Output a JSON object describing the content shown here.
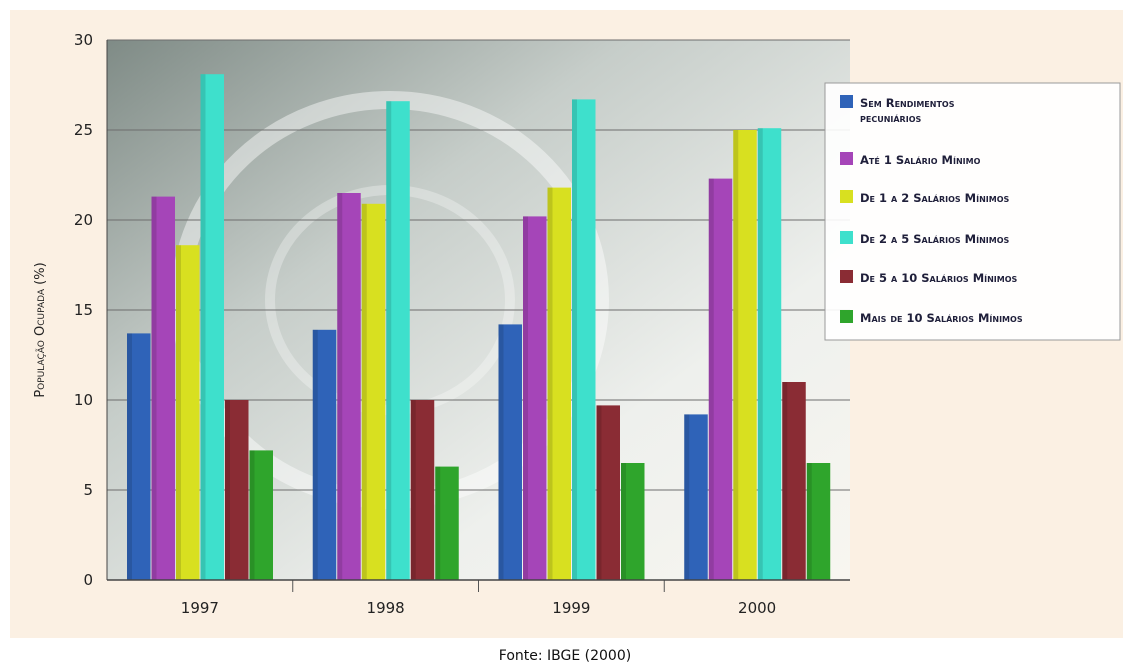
{
  "chart_data": {
    "type": "bar",
    "categories": [
      "1997",
      "1998",
      "1999",
      "2000"
    ],
    "ylabel": "População Ocupada (%)",
    "xlabel": "",
    "ylim": [
      0,
      30
    ],
    "yticks": [
      0,
      5,
      10,
      15,
      20,
      25,
      30
    ],
    "grid": true,
    "legend_position": "right",
    "series": [
      {
        "name": "Sem Rendimentos pecuniários",
        "color": "#2f63b8",
        "values": [
          13.7,
          13.9,
          14.2,
          9.2
        ]
      },
      {
        "name": "Até 1 Salário Mínimo",
        "color": "#a545b8",
        "values": [
          21.3,
          21.5,
          20.2,
          22.3
        ]
      },
      {
        "name": "De 1 a 2 Salários Mínimos",
        "color": "#d8e020",
        "values": [
          18.6,
          20.9,
          21.8,
          25.0
        ]
      },
      {
        "name": "De 2 a 5 Salários Mínimos",
        "color": "#3ee0cc",
        "values": [
          28.1,
          26.6,
          26.7,
          25.1
        ]
      },
      {
        "name": "De 5 a 10 Salários Mínimos",
        "color": "#8a2c34",
        "values": [
          10.0,
          10.0,
          9.7,
          11.0
        ]
      },
      {
        "name": "Mais de 10 Salários Mínimos",
        "color": "#2fa52c",
        "values": [
          7.2,
          6.3,
          6.5,
          6.5
        ]
      }
    ]
  },
  "source": "Fonte: IBGE (2000)"
}
